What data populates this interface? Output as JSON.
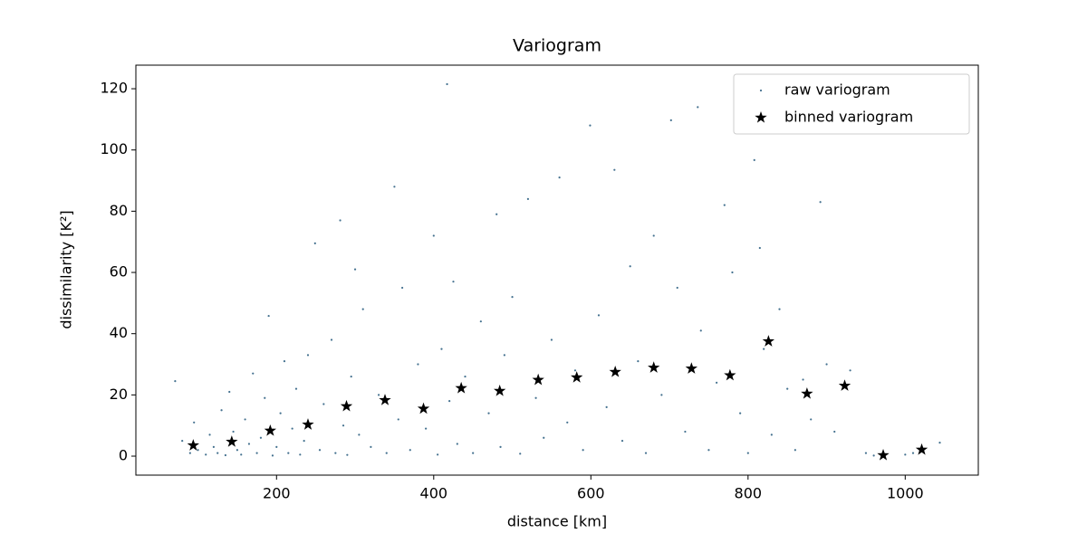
{
  "chart_data": {
    "type": "scatter",
    "title": "Variogram",
    "xlabel": "distance [km]",
    "ylabel": "dissimilarity [K²]",
    "xlim": [
      21,
      1093
    ],
    "ylim": [
      -6.2,
      127.7
    ],
    "xticks": [
      200,
      400,
      600,
      800,
      1000
    ],
    "yticks": [
      0,
      20,
      40,
      60,
      80,
      100,
      120
    ],
    "grid": false,
    "legend": "upper right",
    "series": [
      {
        "name": "raw variogram",
        "color": "#44718f",
        "marker": "point",
        "x": [
          71,
          80,
          90,
          95,
          100,
          110,
          115,
          120,
          125,
          130,
          135,
          140,
          145,
          150,
          155,
          160,
          165,
          170,
          175,
          180,
          185,
          190,
          195,
          200,
          205,
          210,
          215,
          220,
          225,
          230,
          235,
          240,
          249,
          255,
          260,
          270,
          275,
          281,
          285,
          290,
          295,
          300,
          305,
          310,
          320,
          330,
          340,
          350,
          355,
          360,
          370,
          380,
          390,
          400,
          405,
          410,
          417,
          420,
          425,
          430,
          440,
          450,
          460,
          470,
          480,
          485,
          490,
          500,
          510,
          520,
          530,
          540,
          550,
          560,
          570,
          580,
          590,
          599,
          610,
          620,
          630,
          640,
          650,
          660,
          670,
          680,
          690,
          702,
          710,
          720,
          736,
          740,
          750,
          760,
          770,
          780,
          790,
          800,
          808,
          815,
          820,
          830,
          840,
          850,
          860,
          870,
          880,
          892,
          900,
          910,
          930,
          950,
          960,
          1000,
          1010,
          1044
        ],
        "values": [
          24.5,
          5,
          1,
          11,
          2,
          0.5,
          7,
          3,
          1,
          15,
          0.3,
          21,
          8,
          2,
          0.5,
          12,
          4,
          27,
          1,
          6,
          19,
          45.8,
          0.2,
          3,
          14,
          31,
          1,
          9,
          22,
          0.5,
          5,
          33,
          69.5,
          2,
          17,
          38,
          1,
          77,
          10,
          0.4,
          26,
          61,
          7,
          48,
          3,
          20,
          1,
          88,
          12,
          55,
          2,
          30,
          9,
          72,
          0.5,
          35,
          121.5,
          18,
          57,
          4,
          26,
          1,
          44,
          14,
          79,
          3,
          33,
          52,
          0.8,
          84,
          19,
          6,
          38,
          91,
          11,
          28,
          2,
          108,
          46,
          16,
          93.5,
          5,
          62,
          31,
          1,
          72,
          20,
          109.7,
          55,
          8,
          114,
          41,
          2,
          24,
          82,
          60,
          14,
          1,
          96.7,
          68,
          35,
          7,
          48,
          22,
          2,
          25,
          12,
          83,
          30,
          8,
          28,
          1,
          0.2,
          0.5,
          1,
          4.4
        ]
      },
      {
        "name": "binned variogram",
        "color": "#000000",
        "marker": "star",
        "x": [
          94,
          143,
          192,
          240,
          289,
          338,
          387,
          435,
          484,
          533,
          582,
          631,
          680,
          728,
          777,
          826,
          875,
          923,
          972,
          1021
        ],
        "values": [
          3.5,
          4.7,
          8.3,
          10.3,
          16.3,
          18.3,
          15.5,
          22.2,
          21.3,
          24.9,
          25.7,
          27.5,
          28.9,
          28.6,
          26.4,
          37.5,
          20.4,
          23.0,
          0.3,
          2.1
        ]
      }
    ]
  }
}
